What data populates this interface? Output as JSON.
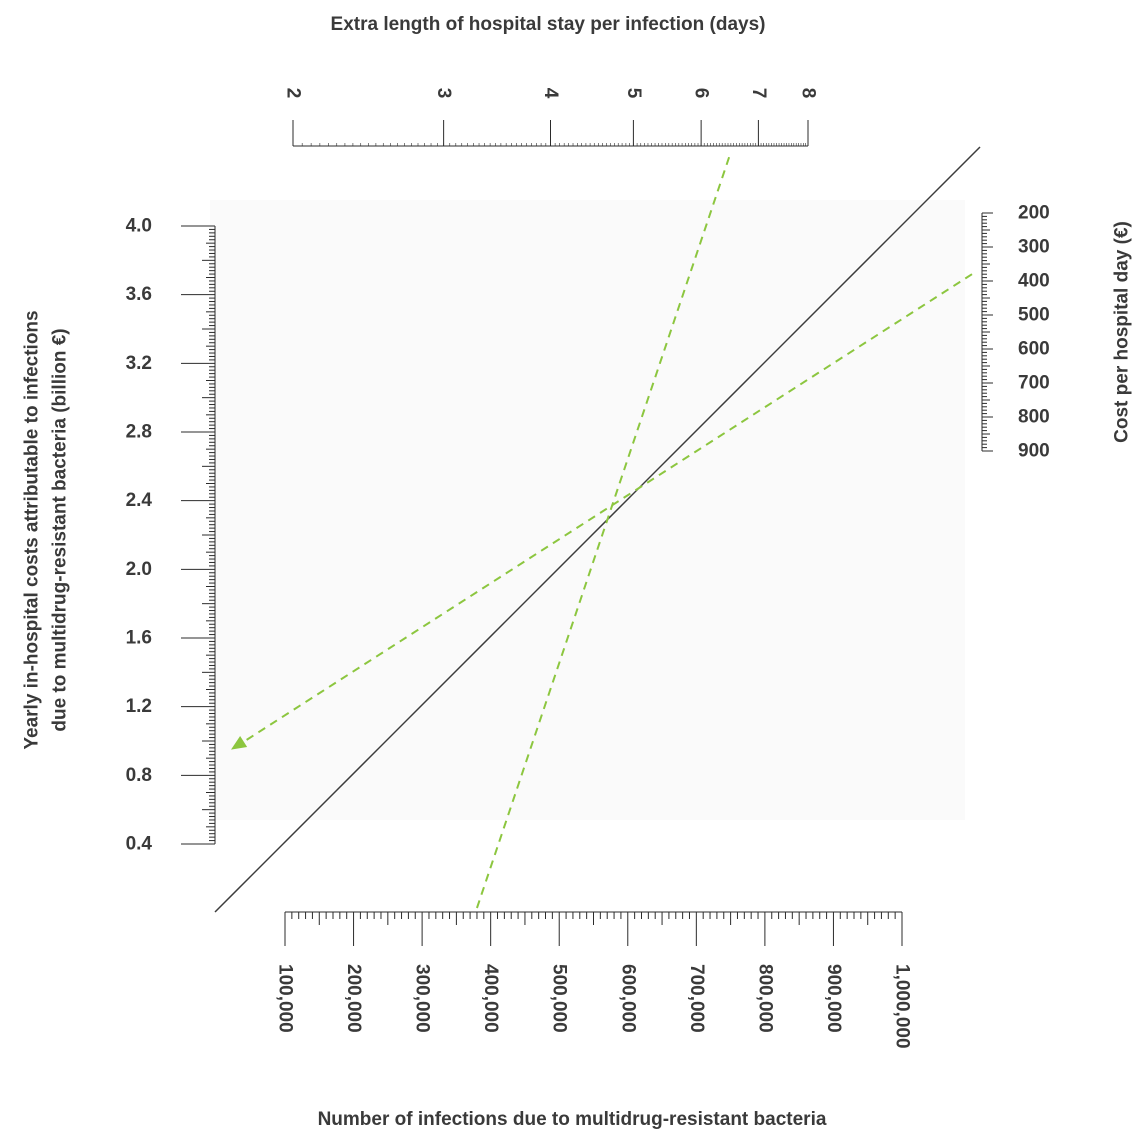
{
  "chart_data": {
    "type": "nomogram",
    "colors": {
      "axis": "#2b2b2b",
      "diagonal": "#3c3c3c",
      "guide": "#8cc63f",
      "text": "#3a3a3a",
      "plot_bg": "#fafafa"
    },
    "axes": [
      {
        "id": "infections",
        "label": "Number of infections due to multidrug-resistant bacteria",
        "scale": "linear",
        "range": [
          100000,
          1000000
        ],
        "ticks": [
          {
            "value": 100000,
            "label": "100,000"
          },
          {
            "value": 200000,
            "label": "200,000"
          },
          {
            "value": 300000,
            "label": "300,000"
          },
          {
            "value": 400000,
            "label": "400,000"
          },
          {
            "value": 500000,
            "label": "500,000"
          },
          {
            "value": 600000,
            "label": "600,000"
          },
          {
            "value": 700000,
            "label": "700,000"
          },
          {
            "value": 800000,
            "label": "800,000"
          },
          {
            "value": 900000,
            "label": "900,000"
          },
          {
            "value": 1000000,
            "label": "1,000,000"
          }
        ]
      },
      {
        "id": "stay",
        "label": "Extra length of hospital stay per infection (days)",
        "scale": "log",
        "range": [
          2,
          8
        ],
        "ticks": [
          {
            "value": 2,
            "label": "2"
          },
          {
            "value": 3,
            "label": "3"
          },
          {
            "value": 4,
            "label": "4"
          },
          {
            "value": 5,
            "label": "5"
          },
          {
            "value": 6,
            "label": "6"
          },
          {
            "value": 7,
            "label": "7"
          },
          {
            "value": 8,
            "label": "8"
          }
        ]
      },
      {
        "id": "costs",
        "label_lines": [
          "Yearly in-hospital costs attributable to infections",
          "due to multidrug-resistant bacteria (billion €)"
        ],
        "scale": "linear",
        "range": [
          0.4,
          4.0
        ],
        "ticks": [
          {
            "value": 0.4,
            "label": "0.4"
          },
          {
            "value": 0.8,
            "label": "0.8"
          },
          {
            "value": 1.2,
            "label": "1.2"
          },
          {
            "value": 1.6,
            "label": "1.6"
          },
          {
            "value": 2.0,
            "label": "2.0"
          },
          {
            "value": 2.4,
            "label": "2.4"
          },
          {
            "value": 2.8,
            "label": "2.8"
          },
          {
            "value": 3.2,
            "label": "3.2"
          },
          {
            "value": 3.6,
            "label": "3.6"
          },
          {
            "value": 4.0,
            "label": "4.0"
          }
        ]
      },
      {
        "id": "day_cost",
        "label": "Cost per hospital day (€)",
        "scale": "linear",
        "range": [
          200,
          900
        ],
        "ticks": [
          {
            "value": 200,
            "label": "200"
          },
          {
            "value": 300,
            "label": "300"
          },
          {
            "value": 400,
            "label": "400"
          },
          {
            "value": 500,
            "label": "500"
          },
          {
            "value": 600,
            "label": "600"
          },
          {
            "value": 700,
            "label": "700"
          },
          {
            "value": 800,
            "label": "800"
          },
          {
            "value": 900,
            "label": "900"
          }
        ]
      }
    ],
    "example_path": {
      "infections": 380000,
      "stay_days": 6.5,
      "cost_per_day": 380,
      "yearly_costs_billion": 0.95
    }
  }
}
